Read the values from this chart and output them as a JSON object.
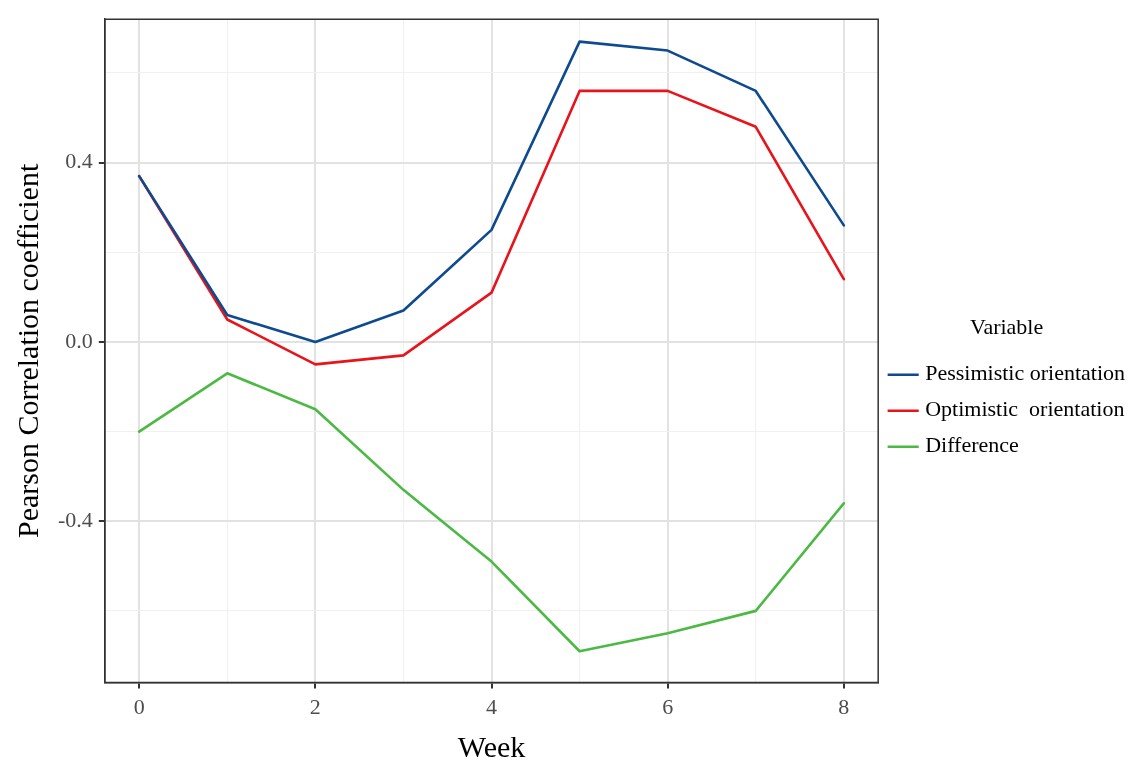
{
  "chart_data": {
    "type": "line",
    "xlabel": "Week",
    "ylabel": "Pearson Correlation coefficient",
    "legend_title": "Variable",
    "legend": "right",
    "grid": true,
    "marker": "none",
    "line_style": "solid",
    "x": [
      0,
      1,
      2,
      3,
      4,
      5,
      6,
      7,
      8
    ],
    "xlim": [
      -0.39,
      8.39
    ],
    "xticks": [
      0,
      {
        "value": 1,
        "label": null
      },
      2,
      {
        "value": 3,
        "label": null
      },
      4,
      {
        "value": 5,
        "label": null
      },
      6,
      {
        "value": 7,
        "label": null
      },
      8
    ],
    "ylim": [
      -0.76,
      0.72
    ],
    "yticks": [
      {
        "value": -0.6,
        "label": null
      },
      {
        "value": -0.4,
        "label": "-0.4"
      },
      {
        "value": -0.2,
        "label": null
      },
      {
        "value": 0,
        "label": "0.0"
      },
      {
        "value": 0.2,
        "label": null
      },
      {
        "value": 0.4,
        "label": "0.4"
      },
      {
        "value": 0.6,
        "label": null
      }
    ],
    "series": [
      {
        "name": "Pessimistic orientation",
        "color": "#0e4a8f",
        "values": [
          0.37,
          0.06,
          0.0,
          0.07,
          0.25,
          0.67,
          0.65,
          0.56,
          0.26
        ]
      },
      {
        "name": "Optimistic  orientation",
        "color": "#e8141c",
        "values": [
          0.37,
          0.05,
          -0.05,
          -0.03,
          0.11,
          0.56,
          0.56,
          0.48,
          0.14
        ]
      },
      {
        "name": "Difference",
        "color": "#4cb944",
        "values": [
          -0.2,
          -0.07,
          -0.15,
          -0.33,
          -0.49,
          -0.69,
          -0.65,
          -0.6,
          -0.36
        ]
      }
    ]
  }
}
